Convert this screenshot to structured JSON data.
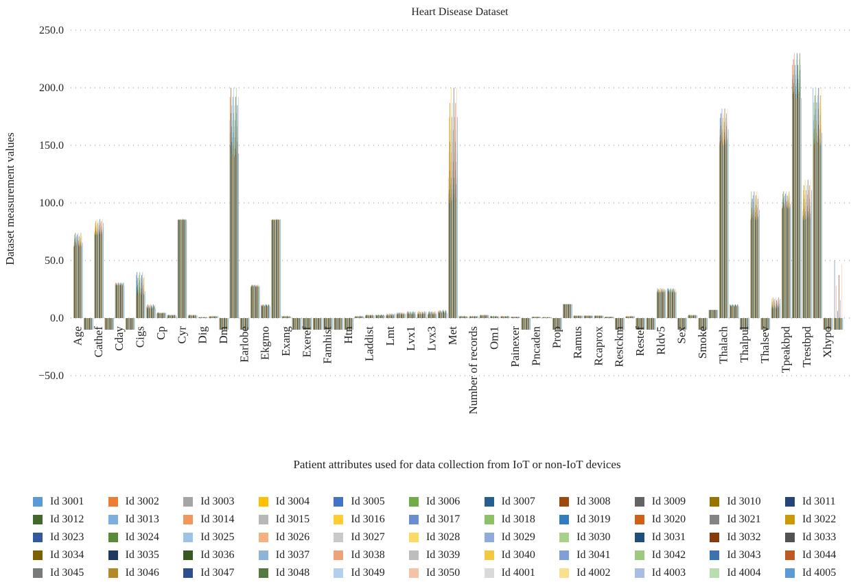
{
  "chart_data": {
    "type": "bar",
    "title": "Heart Disease Dataset",
    "xlabel": "Patient attributes used for data collection from IoT or non-IoT devices",
    "ylabel": "Dataset measurement values",
    "ylim": [
      -50,
      250
    ],
    "yticks": [
      "250.0",
      "200.0",
      "150.0",
      "100.0",
      "50.0",
      "0.0",
      "−50.0"
    ],
    "ytick_values": [
      250,
      200,
      150,
      100,
      50,
      0,
      -50
    ],
    "grid": true,
    "legend_position": "bottom",
    "categories": [
      {
        "label": "Age",
        "band": 0.5,
        "main": 62,
        "peak": 74,
        "minus": 0
      },
      {
        "label": "",
        "band": 0.5,
        "main": -10,
        "peak": -10,
        "minus": 1
      },
      {
        "label": "Cathef",
        "band": 0.5,
        "main": 72,
        "peak": 86,
        "minus": 0
      },
      {
        "label": "",
        "band": 0.5,
        "main": -10,
        "peak": -10,
        "minus": 1
      },
      {
        "label": "Cday",
        "band": 0.5,
        "main": 28,
        "peak": 31,
        "minus": 0
      },
      {
        "label": "",
        "band": 0.5,
        "main": -10,
        "peak": -10,
        "minus": 1
      },
      {
        "label": "Cigs",
        "band": 0.5,
        "main": 20,
        "peak": 40,
        "minus": 0
      },
      {
        "label": "",
        "band": 0.5,
        "main": 8,
        "peak": 12,
        "minus": 0
      },
      {
        "label": "Cp",
        "band": 0.5,
        "main": 4,
        "peak": 5,
        "minus": 0
      },
      {
        "label": "",
        "band": 0.5,
        "main": 2,
        "peak": 3,
        "minus": 0
      },
      {
        "label": "Cyr",
        "band": 0.5,
        "main": 85,
        "peak": 86,
        "minus": 0
      },
      {
        "label": "",
        "band": 0.5,
        "main": 2,
        "peak": 3,
        "minus": 0
      },
      {
        "label": "Dig",
        "band": 0.5,
        "main": 0.5,
        "peak": 1,
        "minus": 0
      },
      {
        "label": "",
        "band": 0.5,
        "main": 1,
        "peak": 2,
        "minus": 0
      },
      {
        "label": "Dm",
        "band": 0.5,
        "main": -10,
        "peak": -10,
        "minus": 1
      },
      {
        "label": "",
        "band": 0.5,
        "main": 140,
        "peak": 200,
        "minus": 0
      },
      {
        "label": "Earlobe",
        "band": 0.5,
        "main": -10,
        "peak": -10,
        "minus": 1
      },
      {
        "label": "",
        "band": 0.5,
        "main": 27,
        "peak": 29,
        "minus": 0
      },
      {
        "label": "Ekgmo",
        "band": 0.5,
        "main": 10,
        "peak": 12,
        "minus": 0
      },
      {
        "label": "",
        "band": 0.5,
        "main": 85,
        "peak": 86,
        "minus": 0
      },
      {
        "label": "Exang",
        "band": 0.5,
        "main": 1,
        "peak": 2,
        "minus": 0
      },
      {
        "label": "",
        "band": 0.5,
        "main": -10,
        "peak": -10,
        "minus": 1
      },
      {
        "label": "Exeref",
        "band": 0.5,
        "main": -10,
        "peak": -10,
        "minus": 1
      },
      {
        "label": "",
        "band": 0.5,
        "main": -10,
        "peak": -10,
        "minus": 1
      },
      {
        "label": "Famhist",
        "band": 0.5,
        "main": -10,
        "peak": -10,
        "minus": 1
      },
      {
        "label": "",
        "band": 0.5,
        "main": -10,
        "peak": -10,
        "minus": 1
      },
      {
        "label": "Htn",
        "band": 0.5,
        "main": -10,
        "peak": -10,
        "minus": 1
      },
      {
        "label": "",
        "band": 0.5,
        "main": 1,
        "peak": 2,
        "minus": 0
      },
      {
        "label": "Laddist",
        "band": 0.5,
        "main": 2,
        "peak": 3,
        "minus": 0
      },
      {
        "label": "",
        "band": 0.5,
        "main": 2,
        "peak": 3,
        "minus": 0
      },
      {
        "label": "Lmt",
        "band": 0.5,
        "main": 2,
        "peak": 4,
        "minus": 0
      },
      {
        "label": "",
        "band": 0.5,
        "main": 3,
        "peak": 5,
        "minus": 0
      },
      {
        "label": "Lvx1",
        "band": 0.5,
        "main": 3,
        "peak": 6,
        "minus": 0
      },
      {
        "label": "",
        "band": 0.5,
        "main": 3,
        "peak": 6,
        "minus": 0
      },
      {
        "label": "Lvx3",
        "band": 0.5,
        "main": 3,
        "peak": 6,
        "minus": 0
      },
      {
        "label": "",
        "band": 0.5,
        "main": 4,
        "peak": 7,
        "minus": 0
      },
      {
        "label": "Met",
        "band": 0.5,
        "main": 100,
        "peak": 200,
        "minus": 0
      },
      {
        "label": "",
        "band": 0.5,
        "main": 1,
        "peak": 2,
        "minus": 0
      },
      {
        "label": "Number of records",
        "band": 0.5,
        "main": 1,
        "peak": 2,
        "minus": 0
      },
      {
        "label": "",
        "band": 0.5,
        "main": 2,
        "peak": 3,
        "minus": 0
      },
      {
        "label": "Om1",
        "band": 0.5,
        "main": 1,
        "peak": 2,
        "minus": 0
      },
      {
        "label": "",
        "band": 0.5,
        "main": 1,
        "peak": 2,
        "minus": 0
      },
      {
        "label": "Painexer",
        "band": 0.5,
        "main": 1,
        "peak": 1,
        "minus": 0
      },
      {
        "label": "",
        "band": 0.5,
        "main": -10,
        "peak": -10,
        "minus": 1
      },
      {
        "label": "Pncaden",
        "band": 0.5,
        "main": 1,
        "peak": 1,
        "minus": 0
      },
      {
        "label": "",
        "band": 0.5,
        "main": 0.5,
        "peak": 1,
        "minus": 0
      },
      {
        "label": "Prop",
        "band": 0.5,
        "main": -10,
        "peak": -10,
        "minus": 1
      },
      {
        "label": "",
        "band": 0.5,
        "main": 12,
        "peak": 12,
        "minus": 0
      },
      {
        "label": "Ramus",
        "band": 0.5,
        "main": 2,
        "peak": 2,
        "minus": 0
      },
      {
        "label": "",
        "band": 0.5,
        "main": 2,
        "peak": 2,
        "minus": 0
      },
      {
        "label": "Rcaprox",
        "band": 0.5,
        "main": 2,
        "peak": 2,
        "minus": 0
      },
      {
        "label": "",
        "band": 0.5,
        "main": 1,
        "peak": 1,
        "minus": 0
      },
      {
        "label": "Restckm",
        "band": 0.5,
        "main": -10,
        "peak": -10,
        "minus": 1
      },
      {
        "label": "",
        "band": 0.5,
        "main": 1,
        "peak": 2,
        "minus": 0
      },
      {
        "label": "Restef",
        "band": 0.5,
        "main": -10,
        "peak": -10,
        "minus": 1
      },
      {
        "label": "",
        "band": 0.5,
        "main": -10,
        "peak": -10,
        "minus": 1
      },
      {
        "label": "Rldv5",
        "band": 0.5,
        "main": 22,
        "peak": 26,
        "minus": 0
      },
      {
        "label": "",
        "band": 0.5,
        "main": 22,
        "peak": 26,
        "minus": 0
      },
      {
        "label": "Sex",
        "band": 0.5,
        "main": -10,
        "peak": -10,
        "minus": 1
      },
      {
        "label": "",
        "band": 0.5,
        "main": 2,
        "peak": 3,
        "minus": 0
      },
      {
        "label": "Smoke",
        "band": 0.5,
        "main": -10,
        "peak": -10,
        "minus": 1
      },
      {
        "label": "",
        "band": 0.5,
        "main": 7,
        "peak": 7,
        "minus": 0
      },
      {
        "label": "Thalach",
        "band": 0.5,
        "main": 150,
        "peak": 182,
        "minus": 0
      },
      {
        "label": "",
        "band": 0.5,
        "main": 10,
        "peak": 12,
        "minus": 0
      },
      {
        "label": "Thalpul",
        "band": 0.5,
        "main": -10,
        "peak": -10,
        "minus": 1
      },
      {
        "label": "",
        "band": 0.5,
        "main": 85,
        "peak": 110,
        "minus": 0
      },
      {
        "label": "Thalsev",
        "band": 0.5,
        "main": -10,
        "peak": -10,
        "minus": 1
      },
      {
        "label": "",
        "band": 0.5,
        "main": 8,
        "peak": 18,
        "minus": 0
      },
      {
        "label": "Tpeakbpd",
        "band": 0.5,
        "main": 95,
        "peak": 110,
        "minus": 0
      },
      {
        "label": "",
        "band": 0.5,
        "main": 190,
        "peak": 230,
        "minus": 0
      },
      {
        "label": "Trestbpd",
        "band": 0.5,
        "main": 85,
        "peak": 120,
        "minus": 0
      },
      {
        "label": "",
        "band": 0.5,
        "main": 150,
        "peak": 200,
        "minus": 0
      },
      {
        "label": "Xhypo",
        "band": 0.5,
        "main": -10,
        "peak": -10,
        "minus": 1
      },
      {
        "label": "",
        "band": 0.5,
        "main": -10,
        "peak": 50,
        "minus": 1
      }
    ],
    "series": [
      {
        "name": "Id 3001",
        "color": "#5b9bd5"
      },
      {
        "name": "Id 3002",
        "color": "#ed7d31"
      },
      {
        "name": "Id 3003",
        "color": "#a5a5a5"
      },
      {
        "name": "Id 3004",
        "color": "#ffc000"
      },
      {
        "name": "Id 3005",
        "color": "#4472c4"
      },
      {
        "name": "Id 3006",
        "color": "#70ad47"
      },
      {
        "name": "Id 3007",
        "color": "#255e91"
      },
      {
        "name": "Id 3008",
        "color": "#9e480e"
      },
      {
        "name": "Id 3009",
        "color": "#636363"
      },
      {
        "name": "Id 3010",
        "color": "#997300"
      },
      {
        "name": "Id 3011",
        "color": "#264478"
      },
      {
        "name": "Id 3012",
        "color": "#43682b"
      },
      {
        "name": "Id 3013",
        "color": "#7cafdd"
      },
      {
        "name": "Id 3014",
        "color": "#f1975a"
      },
      {
        "name": "Id 3015",
        "color": "#b7b7b7"
      },
      {
        "name": "Id 3016",
        "color": "#ffcd33"
      },
      {
        "name": "Id 3017",
        "color": "#698ed0"
      },
      {
        "name": "Id 3018",
        "color": "#8cc168"
      },
      {
        "name": "Id 3019",
        "color": "#327dc2"
      },
      {
        "name": "Id 3020",
        "color": "#d26012"
      },
      {
        "name": "Id 3021",
        "color": "#848484"
      },
      {
        "name": "Id 3022",
        "color": "#cc9a00"
      },
      {
        "name": "Id 3023",
        "color": "#335aa1"
      },
      {
        "name": "Id 3024",
        "color": "#5a8a39"
      },
      {
        "name": "Id 3025",
        "color": "#9dc3e6"
      },
      {
        "name": "Id 3026",
        "color": "#f4b183"
      },
      {
        "name": "Id 3027",
        "color": "#c9c9c9"
      },
      {
        "name": "Id 3028",
        "color": "#ffd966"
      },
      {
        "name": "Id 3029",
        "color": "#8faadc"
      },
      {
        "name": "Id 3030",
        "color": "#a9d18e"
      },
      {
        "name": "Id 3031",
        "color": "#1f4e79"
      },
      {
        "name": "Id 3032",
        "color": "#843c0c"
      },
      {
        "name": "Id 3033",
        "color": "#525252"
      },
      {
        "name": "Id 3034",
        "color": "#7f6000"
      },
      {
        "name": "Id 3035",
        "color": "#203864"
      },
      {
        "name": "Id 3036",
        "color": "#385723"
      },
      {
        "name": "Id 3037",
        "color": "#8fb4d9"
      },
      {
        "name": "Id 3038",
        "color": "#eea27a"
      },
      {
        "name": "Id 3039",
        "color": "#bdbdbd"
      },
      {
        "name": "Id 3040",
        "color": "#f5c842"
      },
      {
        "name": "Id 3041",
        "color": "#7f9fd6"
      },
      {
        "name": "Id 3042",
        "color": "#9cc97e"
      },
      {
        "name": "Id 3043",
        "color": "#3c72ad"
      },
      {
        "name": "Id 3044",
        "color": "#bf5a1f"
      },
      {
        "name": "Id 3045",
        "color": "#7a7a7a"
      },
      {
        "name": "Id 3046",
        "color": "#b38a26"
      },
      {
        "name": "Id 3047",
        "color": "#2e4d8f"
      },
      {
        "name": "Id 3048",
        "color": "#557a3d"
      },
      {
        "name": "Id 3049",
        "color": "#b4cfee"
      },
      {
        "name": "Id 3050",
        "color": "#f5c2a5"
      },
      {
        "name": "Id 4001",
        "color": "#d9d9d9"
      },
      {
        "name": "Id 4002",
        "color": "#f9e08a"
      },
      {
        "name": "Id 4003",
        "color": "#a8bde6"
      },
      {
        "name": "Id 4004",
        "color": "#b9ddae"
      },
      {
        "name": "Id 4005",
        "color": "#5b9bd5"
      }
    ]
  }
}
